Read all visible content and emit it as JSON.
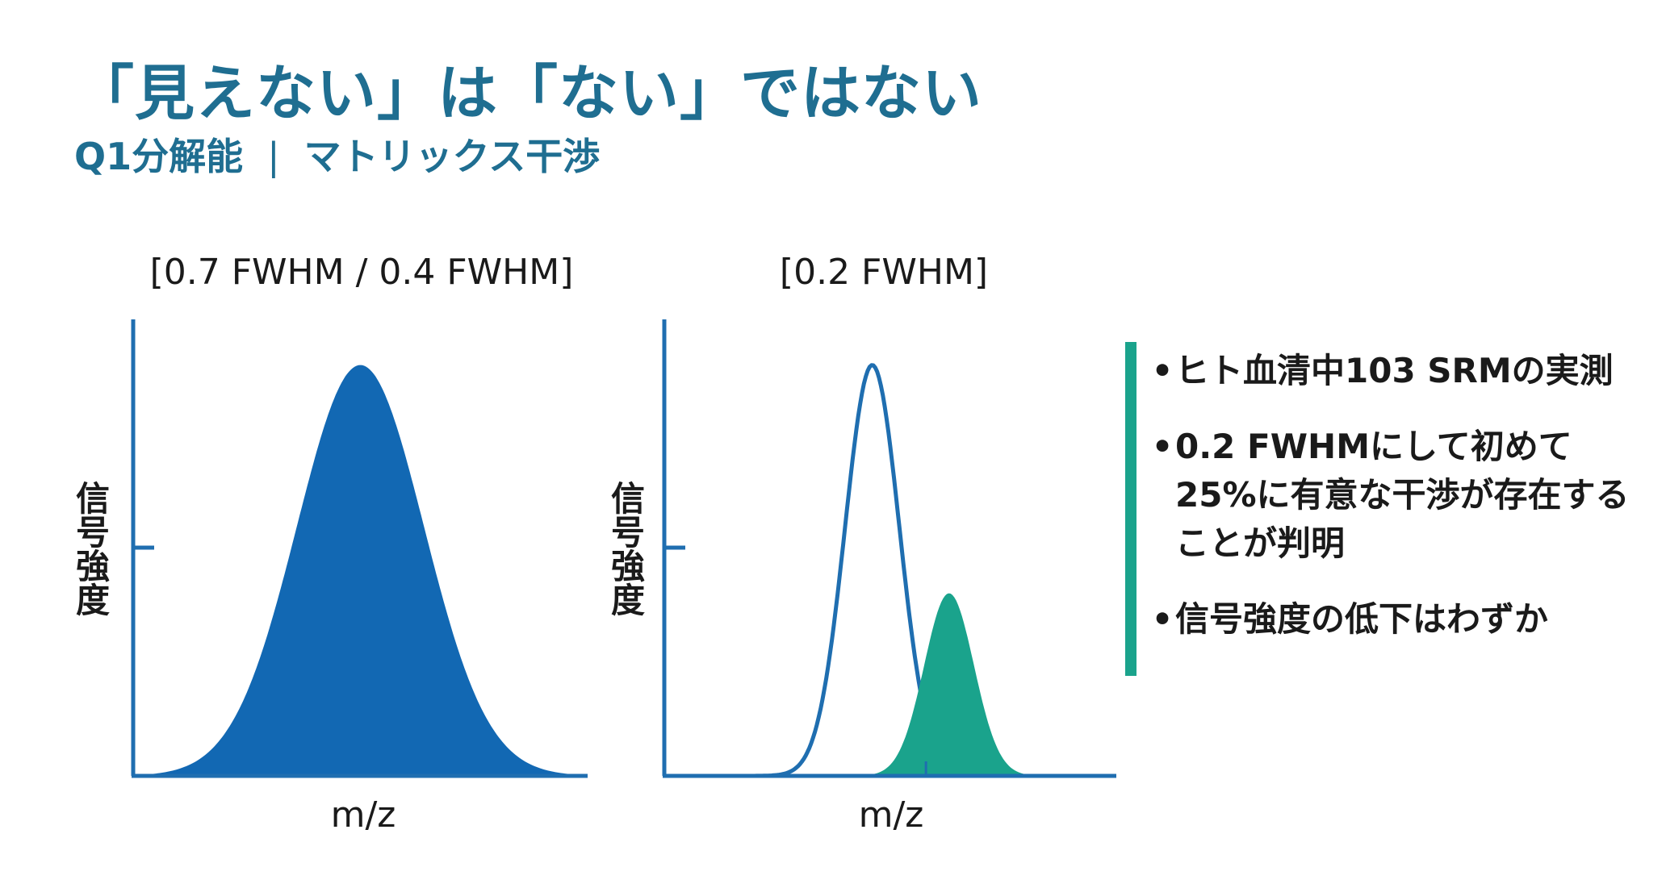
{
  "title": "「見えない」は「ない」ではない",
  "subtitle": {
    "left": "Q1分解能",
    "separator": "|",
    "right": "マトリックス干渉"
  },
  "colors": {
    "title": "#1f6e91",
    "axis": "#1f6eb0",
    "fill_blue": "#1268b3",
    "fill_teal": "#1aa38c",
    "accent_bar": "#1aa38c"
  },
  "bullets": [
    "ヒト血清中103 SRMの実測",
    "0.2 FWHMにして初めて25%に有意な干渉が存在することが判明",
    "信号強度の低下はわずか"
  ],
  "chart_data": [
    {
      "type": "area",
      "title": "[0.7 FWHM / 0.4 FWHM]",
      "xlabel": "m/z",
      "ylabel": "信号強度",
      "xlim": [
        0,
        1
      ],
      "ylim": [
        0,
        1
      ],
      "grid": false,
      "series": [
        {
          "name": "",
          "style": "filled",
          "color": "#1268b3",
          "peak": {
            "center": 0.5,
            "width": 0.14,
            "height": 0.9
          }
        }
      ]
    },
    {
      "type": "area",
      "title": "[0.2 FWHM]",
      "xlabel": "m/z",
      "ylabel": "信号強度",
      "xlim": [
        0,
        1
      ],
      "ylim": [
        0,
        1
      ],
      "grid": false,
      "series": [
        {
          "name": "",
          "style": "outline",
          "color": "#1f6eb0",
          "peak": {
            "center": 0.46,
            "width": 0.06,
            "height": 0.9
          }
        },
        {
          "name": "",
          "style": "filled",
          "color": "#1aa38c",
          "peak": {
            "center": 0.63,
            "width": 0.055,
            "height": 0.4
          }
        }
      ]
    }
  ]
}
